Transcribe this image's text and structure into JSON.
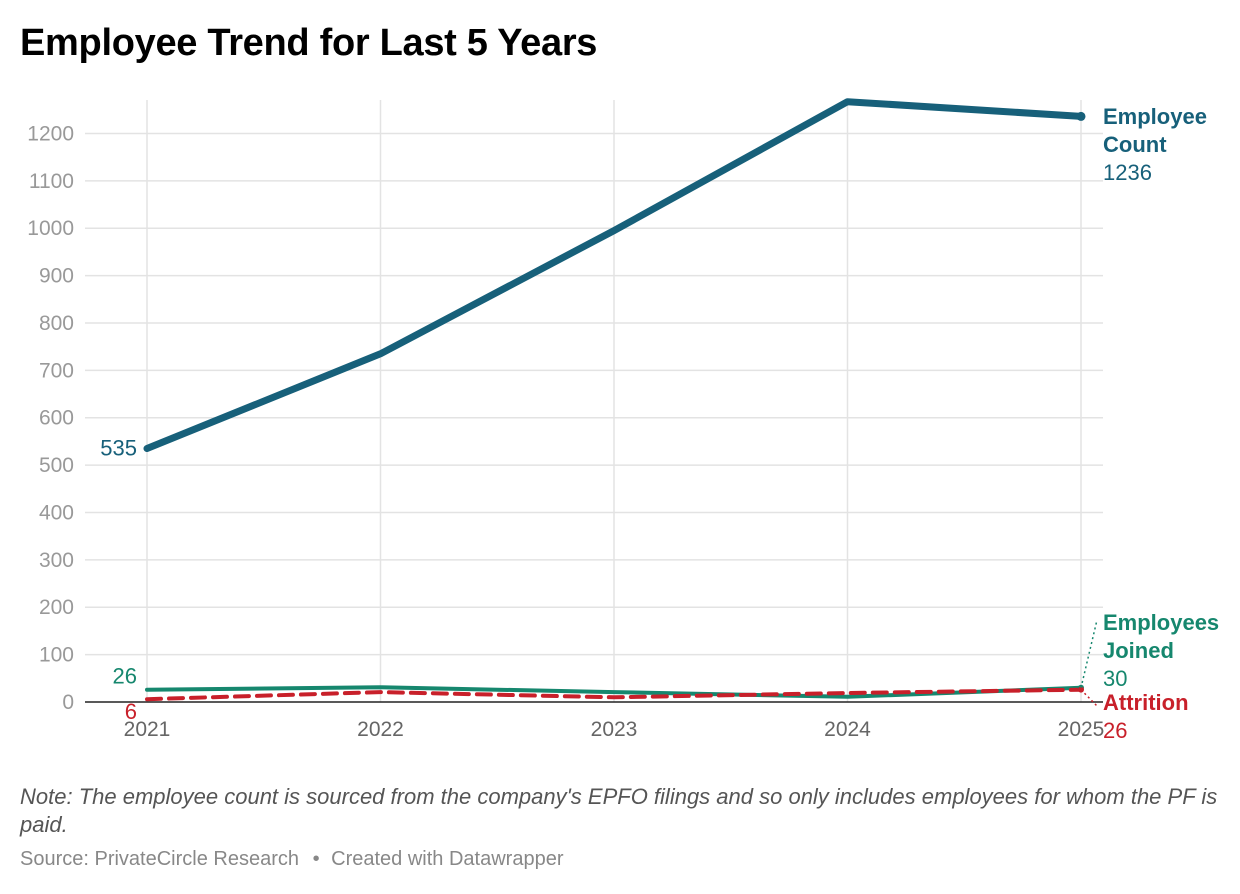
{
  "title": "Employee Trend for Last 5 Years",
  "note": "Note: The employee count is sourced from the company's EPFO filings and so only includes employees for whom the PF is paid.",
  "footer": {
    "source": "Source: PrivateCircle Research",
    "separator": "•",
    "created": "Created with Datawrapper"
  },
  "chart_data": {
    "type": "line",
    "title": "Employee Trend for Last 5 Years",
    "x": [
      "2021",
      "2022",
      "2023",
      "2024",
      "2025"
    ],
    "ylim": [
      0,
      1270
    ],
    "yticks": [
      0,
      100,
      200,
      300,
      400,
      500,
      600,
      700,
      800,
      900,
      1000,
      1100,
      1200
    ],
    "grid": true,
    "legend": "direct labels at line ends (right)",
    "series": [
      {
        "key": "employee_count",
        "name_lines": [
          "Employee",
          "Count"
        ],
        "values": [
          535,
          735,
          995,
          1267,
          1236
        ],
        "color": "#17607a",
        "style": "solid-thick",
        "start_label": "535",
        "end_label": "1236"
      },
      {
        "key": "employees_joined",
        "name_lines": [
          "Employees",
          "Joined"
        ],
        "values": [
          26,
          31,
          21,
          11,
          30
        ],
        "color": "#16876e",
        "style": "solid",
        "start_label": "26",
        "end_label": "30"
      },
      {
        "key": "attrition",
        "name_lines": [
          "Attrition"
        ],
        "values": [
          6,
          21,
          10,
          19,
          26
        ],
        "color": "#c8202a",
        "style": "dashed",
        "start_label": "6",
        "end_label": "26"
      }
    ]
  }
}
